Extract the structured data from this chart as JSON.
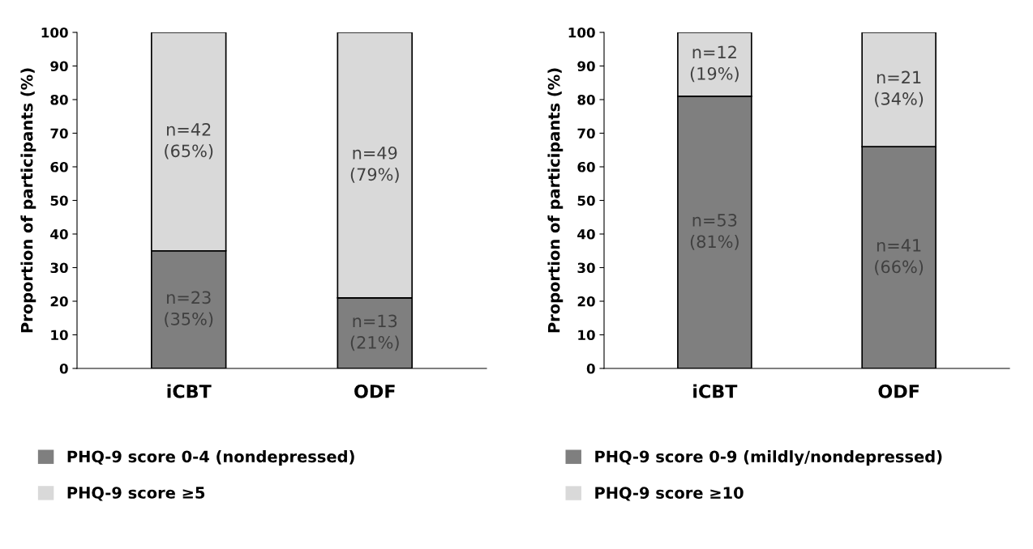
{
  "chart_data": [
    {
      "type": "bar",
      "stacked": true,
      "ylabel": "Proportion of participants (%)",
      "categories": [
        "iCBT",
        "ODF"
      ],
      "ylim": [
        0,
        100
      ],
      "yticks": [
        0,
        10,
        20,
        30,
        40,
        50,
        60,
        70,
        80,
        90,
        100
      ],
      "grid": false,
      "legend": "bottom",
      "series": [
        {
          "name": "PHQ-9 score 0-4 (nondepressed)",
          "color": "#7f7f7f",
          "values": [
            35,
            21
          ],
          "value_labels": [
            "n=23\n(35%)",
            "n=13\n(21%)"
          ]
        },
        {
          "name": "PHQ-9 score ≥5",
          "color": "#d9d9d9",
          "values": [
            65,
            79
          ],
          "value_labels": [
            "n=42\n(65%)",
            "n=49\n(79%)"
          ]
        }
      ]
    },
    {
      "type": "bar",
      "stacked": true,
      "ylabel": "Proportion of participants (%)",
      "categories": [
        "iCBT",
        "ODF"
      ],
      "ylim": [
        0,
        100
      ],
      "yticks": [
        0,
        10,
        20,
        30,
        40,
        50,
        60,
        70,
        80,
        90,
        100
      ],
      "grid": false,
      "legend": "bottom",
      "series": [
        {
          "name": "PHQ-9 score 0-9 (mildly/nondepressed)",
          "color": "#7f7f7f",
          "values": [
            81,
            66
          ],
          "value_labels": [
            "n=53\n(81%)",
            "n=41\n(66%)"
          ]
        },
        {
          "name": "PHQ-9 score ≥10",
          "color": "#d9d9d9",
          "values": [
            19,
            34
          ],
          "value_labels": [
            "n=12\n(19%)",
            "n=21\n(34%)"
          ]
        }
      ]
    }
  ]
}
